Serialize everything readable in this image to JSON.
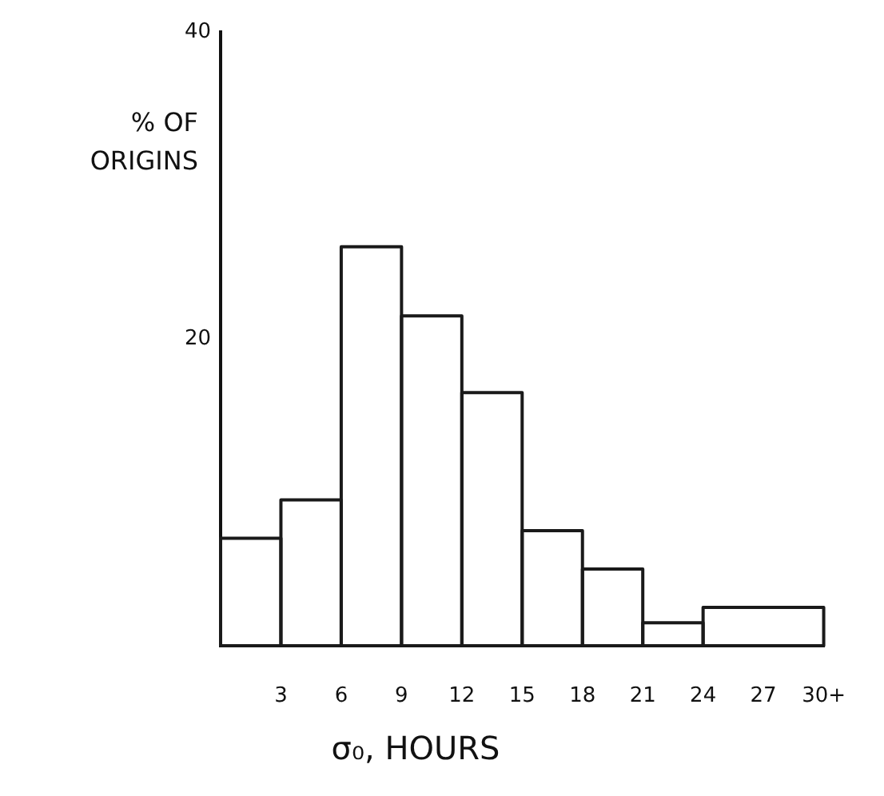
{
  "chart_data": {
    "type": "histogram",
    "xlabel": "σ₀, HOURS",
    "ylabel": "% OF ORIGINS",
    "bins": [
      0,
      3,
      6,
      9,
      12,
      15,
      18,
      21,
      24,
      30
    ],
    "values": [
      7,
      9.5,
      26,
      21.5,
      16.5,
      7.5,
      5,
      1.5,
      2.5
    ],
    "color": "#1a1a1a",
    "xlim": [
      0,
      30
    ],
    "xticks": [
      3,
      6,
      9,
      12,
      15,
      18,
      21,
      24,
      27,
      {
        "value": 30,
        "label": "30+"
      }
    ],
    "ylim": [
      0,
      40
    ],
    "yticks": [
      20,
      40
    ],
    "grid": false,
    "legend": false
  }
}
